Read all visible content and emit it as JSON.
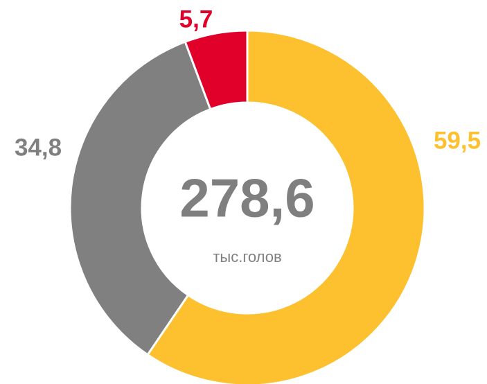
{
  "chart_data": {
    "type": "donut",
    "values": [
      59.5,
      34.8,
      5.7
    ],
    "value_labels": [
      "59,5",
      "34,8",
      "5,7"
    ],
    "colors": [
      "#fdc02f",
      "#808080",
      "#e0002a"
    ],
    "center_label": "278,6",
    "center_sublabel": "тыс.голов"
  }
}
